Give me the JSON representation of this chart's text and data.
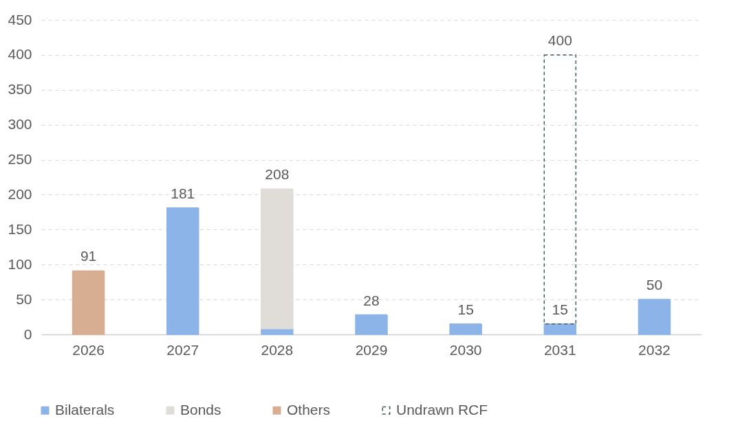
{
  "chart_data": {
    "type": "bar",
    "stacked": true,
    "categories": [
      "2026",
      "2027",
      "2028",
      "2029",
      "2030",
      "2031",
      "2032"
    ],
    "series": [
      {
        "name": "Bilaterals",
        "color": "#8db4e8",
        "values": [
          null,
          181,
          8,
          28,
          15,
          15,
          50
        ]
      },
      {
        "name": "Bonds",
        "color": "#e0dcd8",
        "values": [
          null,
          null,
          200,
          null,
          null,
          null,
          null
        ]
      },
      {
        "name": "Others",
        "color": "#d7ae92",
        "values": [
          91,
          null,
          null,
          null,
          null,
          null,
          null
        ]
      },
      {
        "name": "Undrawn RCF",
        "color": "#3f5f5a",
        "line_style": "dashed",
        "values": [
          null,
          null,
          null,
          null,
          null,
          385,
          null
        ]
      }
    ],
    "totals": [
      "91",
      "181",
      "208",
      "28",
      "15",
      "400",
      "50"
    ],
    "annotations": [
      {
        "text": "15",
        "x": "2031",
        "y": 15
      }
    ],
    "ylim": [
      0,
      450
    ],
    "yticks": [
      0,
      50,
      100,
      150,
      200,
      250,
      300,
      350,
      400,
      450
    ],
    "grid": "y",
    "legend": "bottom left"
  }
}
